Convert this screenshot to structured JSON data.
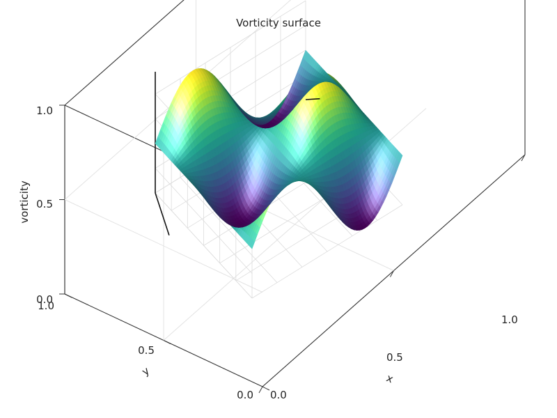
{
  "chart_data": {
    "type": "surface",
    "title": "Vorticity surface",
    "xlabel": "x",
    "ylabel": "y",
    "zlabel": "vorticity",
    "xlim": [
      0,
      1
    ],
    "ylim": [
      0,
      1
    ],
    "zlim": [
      0,
      1
    ],
    "x_ticks": [
      "0.0",
      "0.5",
      "1.0"
    ],
    "y_ticks": [
      "0.0",
      "0.5",
      "1.0"
    ],
    "z_ticks": [
      "0.0",
      "0.5",
      "1.0"
    ],
    "surface_x_range": [
      0,
      6.28
    ],
    "surface_y_range": [
      0,
      6.28
    ],
    "surface_z_range": [
      -1,
      1
    ],
    "surface_function": "sin(x)*cos(y)",
    "colormap": "viridis",
    "grid": true
  }
}
